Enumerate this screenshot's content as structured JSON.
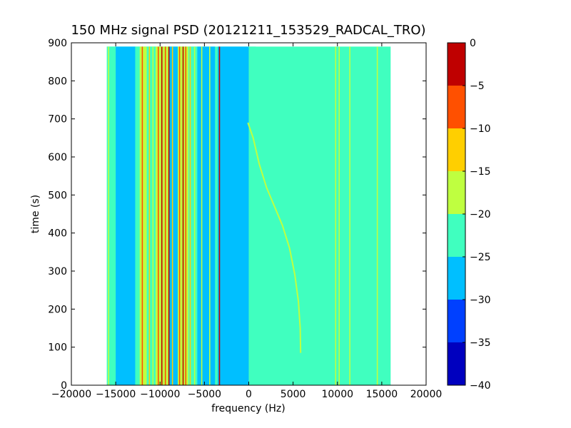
{
  "chart_data": {
    "type": "heatmap",
    "title": "150 MHz signal PSD (20121211_153529_RADCAL_TRO)",
    "xlabel": "frequency (Hz)",
    "ylabel": "time (s)",
    "xlim": [
      -20000,
      20000
    ],
    "ylim": [
      0,
      900
    ],
    "xticks": [
      "−20000",
      "−15000",
      "−10000",
      "−5000",
      "0",
      "5000",
      "10000",
      "15000",
      "20000"
    ],
    "yticks": [
      "0",
      "100",
      "200",
      "300",
      "400",
      "500",
      "600",
      "700",
      "800",
      "900"
    ],
    "data_extent": {
      "x": [
        -16000,
        16000
      ],
      "y": [
        0,
        890
      ]
    },
    "background_level": -22,
    "colorbar": {
      "range": [
        -40,
        0
      ],
      "ticks": [
        "−40",
        "−35",
        "−30",
        "−25",
        "−20",
        "−15",
        "−10",
        "−5",
        "0"
      ],
      "bands": [
        {
          "from": -40,
          "to": -35,
          "color": "#0000bf"
        },
        {
          "from": -35,
          "to": -30,
          "color": "#0040ff"
        },
        {
          "from": -30,
          "to": -25,
          "color": "#00bfff"
        },
        {
          "from": -25,
          "to": -20,
          "color": "#40ffbf"
        },
        {
          "from": -20,
          "to": -15,
          "color": "#bfff40"
        },
        {
          "from": -15,
          "to": -10,
          "color": "#ffcf00"
        },
        {
          "from": -10,
          "to": -5,
          "color": "#ff5000"
        },
        {
          "from": -5,
          "to": 0,
          "color": "#bf0000"
        }
      ]
    },
    "vertical_bands": [
      {
        "x0": -16000,
        "x1": -15000,
        "level": -21
      },
      {
        "x0": -15000,
        "x1": -12800,
        "level": -27
      },
      {
        "x0": -12800,
        "x1": -12300,
        "level": -21
      },
      {
        "x0": -12300,
        "x1": -11500,
        "level": -17
      },
      {
        "x0": -11500,
        "x1": -10500,
        "level": -22
      },
      {
        "x0": -10500,
        "x1": -9000,
        "level": -18
      },
      {
        "x0": -9000,
        "x1": -8000,
        "level": -26
      },
      {
        "x0": -8000,
        "x1": -6800,
        "level": -19
      },
      {
        "x0": -6800,
        "x1": -5800,
        "level": -22
      },
      {
        "x0": -5800,
        "x1": -3800,
        "level": -27
      },
      {
        "x0": -3500,
        "x1": 0,
        "level": -26
      },
      {
        "x0": 0,
        "x1": 800,
        "level": -22
      }
    ],
    "spectral_lines": [
      {
        "x": -15800,
        "level": -16
      },
      {
        "x": -12000,
        "level": -8
      },
      {
        "x": -11700,
        "level": -17
      },
      {
        "x": -11200,
        "level": -12
      },
      {
        "x": -10800,
        "level": -17
      },
      {
        "x": -10200,
        "level": -8
      },
      {
        "x": -9800,
        "level": -3
      },
      {
        "x": -9400,
        "level": -8
      },
      {
        "x": -9000,
        "level": -2
      },
      {
        "x": -8600,
        "level": -12
      },
      {
        "x": -7800,
        "level": -8
      },
      {
        "x": -7400,
        "level": -2
      },
      {
        "x": -7100,
        "level": -8
      },
      {
        "x": -6600,
        "level": -12
      },
      {
        "x": -6100,
        "level": -17
      },
      {
        "x": -5300,
        "level": -17
      },
      {
        "x": -4400,
        "level": -17
      },
      {
        "x": -3300,
        "level": -3
      },
      {
        "x": 9800,
        "level": -17
      },
      {
        "x": 10200,
        "level": -17
      },
      {
        "x": 11400,
        "level": -17
      },
      {
        "x": 14500,
        "level": -17
      }
    ],
    "signal_track": {
      "level": -16,
      "points": [
        {
          "x": 5850,
          "y": 85
        },
        {
          "x": 5800,
          "y": 150
        },
        {
          "x": 5600,
          "y": 220
        },
        {
          "x": 5200,
          "y": 290
        },
        {
          "x": 4600,
          "y": 360
        },
        {
          "x": 3800,
          "y": 420
        },
        {
          "x": 2900,
          "y": 470
        },
        {
          "x": 2000,
          "y": 520
        },
        {
          "x": 1200,
          "y": 580
        },
        {
          "x": 500,
          "y": 650
        },
        {
          "x": -100,
          "y": 690
        }
      ]
    }
  }
}
